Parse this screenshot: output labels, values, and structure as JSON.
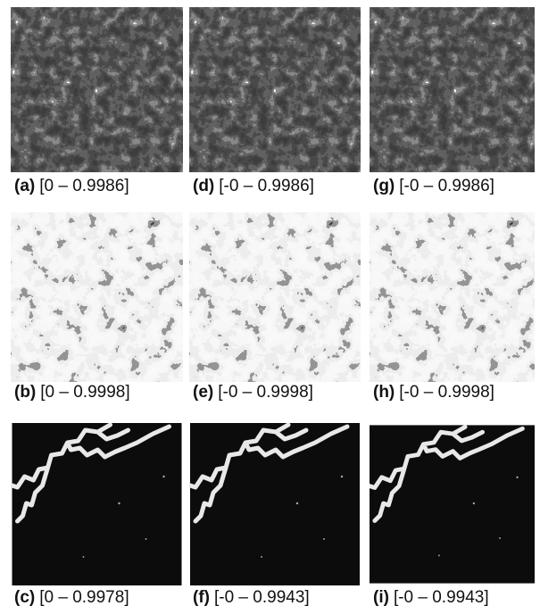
{
  "rows": [
    [
      {
        "label": "(a)",
        "range": "[0 – 0.9986]"
      },
      {
        "label": "(d)",
        "range": "[-0 – 0.9986]"
      },
      {
        "label": "(g)",
        "range": "[-0 – 0.9986]"
      }
    ],
    [
      {
        "label": "(b)",
        "range": "[0 – 0.9998]"
      },
      {
        "label": "(e)",
        "range": "[-0 – 0.9998]"
      },
      {
        "label": "(h)",
        "range": "[-0 – 0.9998]"
      }
    ],
    [
      {
        "label": "(c)",
        "range": "[0 – 0.9978]"
      },
      {
        "label": "(f)",
        "range": "[-0 – 0.9943]"
      },
      {
        "label": "(i)",
        "range": "[-0 – 0.9943]"
      }
    ]
  ]
}
